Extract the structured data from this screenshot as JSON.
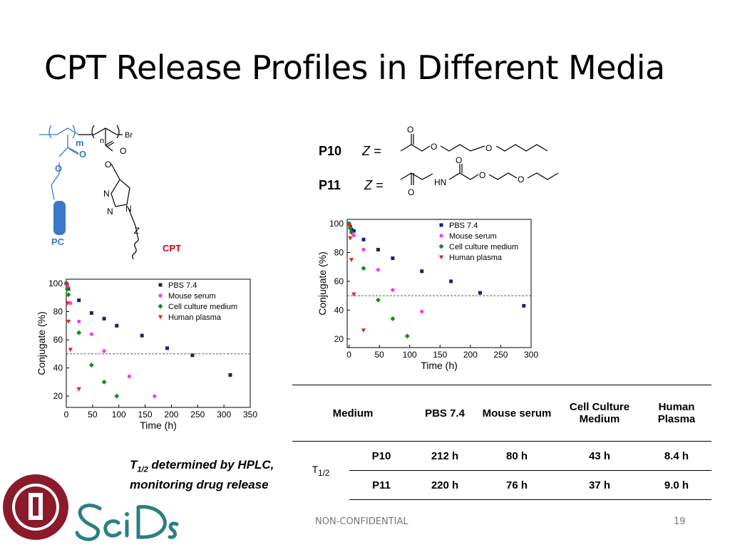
{
  "slide": {
    "title": "CPT Release Profiles in Different Media",
    "page_number": "19",
    "footer": "NON-CONFIDENTIAL"
  },
  "structure": {
    "m": "m",
    "n": "n",
    "br": "Br",
    "o": "O",
    "n_atom": "N",
    "pc": "PC",
    "cpt": "CPT",
    "z": "Z",
    "p10": "P10",
    "p11": "P11",
    "z_eq": "Z =",
    "hn": "HN"
  },
  "note": {
    "line1_prefix": "T",
    "line1_sub": "1/2",
    "line1_rest": " determined by HPLC,",
    "line2": "monitoring drug release"
  },
  "table": {
    "medium": "Medium",
    "pbs": "PBS 7.4",
    "mouse": "Mouse serum",
    "cell": "Cell Culture Medium",
    "human": "Human Plasma",
    "t_label": "T",
    "t_sub": "1/2",
    "rows": [
      {
        "name": "P10",
        "values": [
          "212 h",
          "80 h",
          "43 h",
          "8.4 h"
        ]
      },
      {
        "name": "P11",
        "values": [
          "220 h",
          "76 h",
          "37 h",
          "9.0 h"
        ]
      }
    ]
  },
  "colors": {
    "pbs": "#1a1f7a",
    "mouse": "#ff33ff",
    "cell": "#1a8a1a",
    "human": "#e8231e",
    "brand_teal": "#2c7f83",
    "seal_red": "#8b1a2b",
    "pc_blue": "#3a78c9",
    "cpt_red": "#d0021b"
  },
  "chart_data": [
    {
      "type": "scatter",
      "xlabel": "Time (h)",
      "ylabel": "Conjugate (%)",
      "xlim": [
        0,
        350
      ],
      "ylim": [
        12,
        103
      ],
      "xticks": [
        0,
        50,
        100,
        150,
        200,
        250,
        300,
        350
      ],
      "yticks": [
        20,
        40,
        60,
        80,
        100
      ],
      "reference_line": 50,
      "legend_position": "top-right",
      "series": [
        {
          "name": "PBS 7.4",
          "marker": "square",
          "color_key": "pbs",
          "x": [
            0,
            2,
            4,
            24,
            48,
            72,
            96,
            144,
            192,
            240,
            312
          ],
          "y": [
            100,
            98,
            96,
            88,
            79,
            75,
            70,
            63,
            54,
            49,
            35
          ]
        },
        {
          "name": "Mouse serum",
          "marker": "circle",
          "color_key": "mouse",
          "x": [
            0,
            2,
            8,
            24,
            48,
            72,
            120,
            168
          ],
          "y": [
            100,
            98,
            86,
            73,
            64,
            52,
            34,
            20
          ]
        },
        {
          "name": "Cell culture medium",
          "marker": "diamond",
          "color_key": "cell",
          "x": [
            0,
            2,
            4,
            24,
            48,
            72,
            96
          ],
          "y": [
            100,
            96,
            92,
            65,
            42,
            30,
            20
          ]
        },
        {
          "name": "Human plasma",
          "marker": "triangle",
          "color_key": "human",
          "x": [
            0,
            2,
            4,
            8,
            24
          ],
          "y": [
            99,
            86,
            73,
            53,
            25
          ]
        }
      ]
    },
    {
      "type": "scatter",
      "xlabel": "Time (h)",
      "ylabel": "Conjugate (%)",
      "xlim": [
        -3,
        300
      ],
      "ylim": [
        14,
        103
      ],
      "xticks": [
        0,
        50,
        100,
        150,
        200,
        250,
        300
      ],
      "yticks": [
        20,
        40,
        60,
        80,
        100
      ],
      "reference_line": 50,
      "legend_position": "top-right",
      "series": [
        {
          "name": "PBS 7.4",
          "marker": "square",
          "color_key": "pbs",
          "x": [
            0,
            2,
            4,
            8,
            24,
            48,
            72,
            120,
            168,
            216,
            288
          ],
          "y": [
            100,
            98,
            96,
            95,
            89,
            82,
            76,
            67,
            60,
            52,
            43
          ]
        },
        {
          "name": "Mouse serum",
          "marker": "circle",
          "color_key": "mouse",
          "x": [
            0,
            2,
            8,
            24,
            48,
            72,
            120
          ],
          "y": [
            100,
            97,
            92,
            82,
            68,
            54,
            39
          ]
        },
        {
          "name": "Cell culture medium",
          "marker": "diamond",
          "color_key": "cell",
          "x": [
            0,
            2,
            4,
            24,
            48,
            72,
            96
          ],
          "y": [
            100,
            97,
            94,
            69,
            47,
            34,
            22
          ]
        },
        {
          "name": "Human plasma",
          "marker": "triangle",
          "color_key": "human",
          "x": [
            0,
            2,
            4,
            8,
            24
          ],
          "y": [
            99,
            90,
            75,
            51,
            26
          ]
        }
      ]
    }
  ]
}
